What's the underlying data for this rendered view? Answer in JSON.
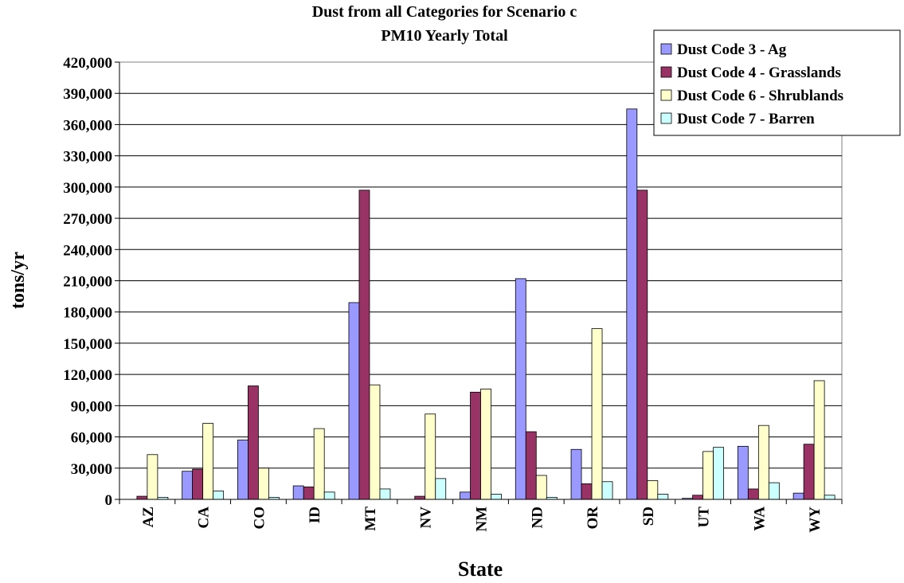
{
  "chart_data": {
    "type": "bar",
    "title": "Dust from all Categories for Scenario c",
    "subtitle": "PM10 Yearly Total",
    "xlabel": "State",
    "ylabel": "tons/yr",
    "ylim": [
      0,
      420000
    ],
    "yticks": [
      "0",
      "30,000",
      "60,000",
      "90,000",
      "120,000",
      "150,000",
      "180,000",
      "210,000",
      "240,000",
      "270,000",
      "300,000",
      "330,000",
      "360,000",
      "390,000",
      "420,000"
    ],
    "grid": true,
    "legend": "top-right",
    "categories": [
      "AZ",
      "CA",
      "CO",
      "ID",
      "MT",
      "NV",
      "NM",
      "ND",
      "OR",
      "SD",
      "UT",
      "WA",
      "WY"
    ],
    "series": [
      {
        "name": "Dust Code 3 - Ag",
        "color": "#9999FF",
        "values": [
          0,
          27000,
          57000,
          13000,
          189000,
          0,
          7000,
          212000,
          48000,
          375000,
          1000,
          51000,
          6000
        ]
      },
      {
        "name": "Dust Code 4 - Grasslands",
        "color": "#993366",
        "values": [
          3000,
          29000,
          109000,
          12000,
          297000,
          3000,
          103000,
          65000,
          15000,
          297000,
          4000,
          10000,
          53000
        ]
      },
      {
        "name": "Dust Code 6 - Shrublands",
        "color": "#FFFFCC",
        "values": [
          43000,
          73000,
          30000,
          68000,
          110000,
          82000,
          106000,
          23000,
          164000,
          18000,
          46000,
          71000,
          114000
        ]
      },
      {
        "name": "Dust Code 7 - Barren",
        "color": "#CCFFFF",
        "values": [
          2000,
          8000,
          2000,
          7000,
          10000,
          20000,
          5000,
          2000,
          17000,
          5000,
          50000,
          16000,
          4000
        ]
      }
    ]
  }
}
